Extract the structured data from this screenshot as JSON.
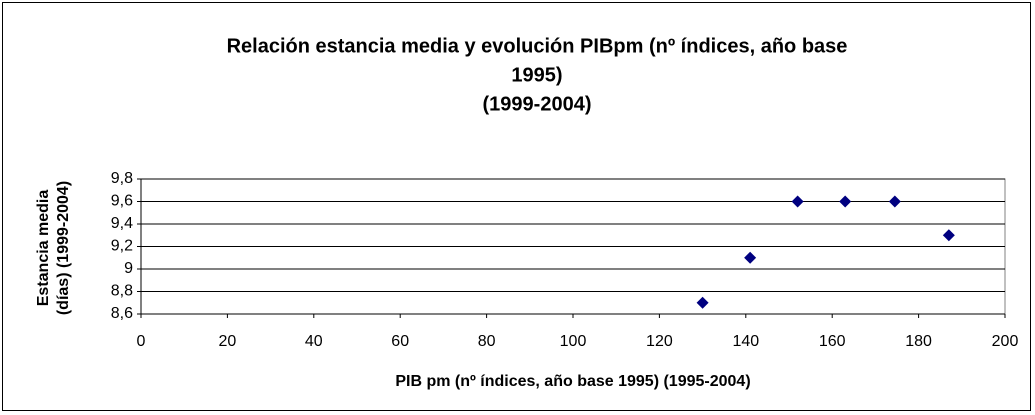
{
  "chart_data": {
    "type": "scatter",
    "title": [
      "Relación estancia media y evolución PIBpm (nº índices, año base",
      "1995)",
      "(1999-2004)"
    ],
    "x_label": "PIB pm (nº índices, año base 1995) (1995-2004)",
    "y_label": [
      "Estancia media",
      "(días) (1999-2004)"
    ],
    "series": [
      {
        "name": "Estancia media",
        "color": "#000080",
        "x": [
          130,
          141,
          152,
          163,
          174.5,
          187
        ],
        "values": [
          8.7,
          9.1,
          9.6,
          9.6,
          9.6,
          9.3
        ]
      }
    ],
    "xlim": [
      0,
      200
    ],
    "xticks": [
      0,
      20,
      40,
      60,
      80,
      100,
      120,
      140,
      160,
      180,
      200
    ],
    "ylim": [
      8.6,
      9.8
    ],
    "yticks": [
      {
        "value": 8.6,
        "label": "8,6"
      },
      {
        "value": 8.8,
        "label": "8,8"
      },
      9,
      {
        "value": 9.2,
        "label": "9,2"
      },
      {
        "value": 9.4,
        "label": "9,4"
      },
      {
        "value": 9.6,
        "label": "9,6"
      },
      {
        "value": 9.8,
        "label": "9,8"
      }
    ],
    "grid": true
  }
}
